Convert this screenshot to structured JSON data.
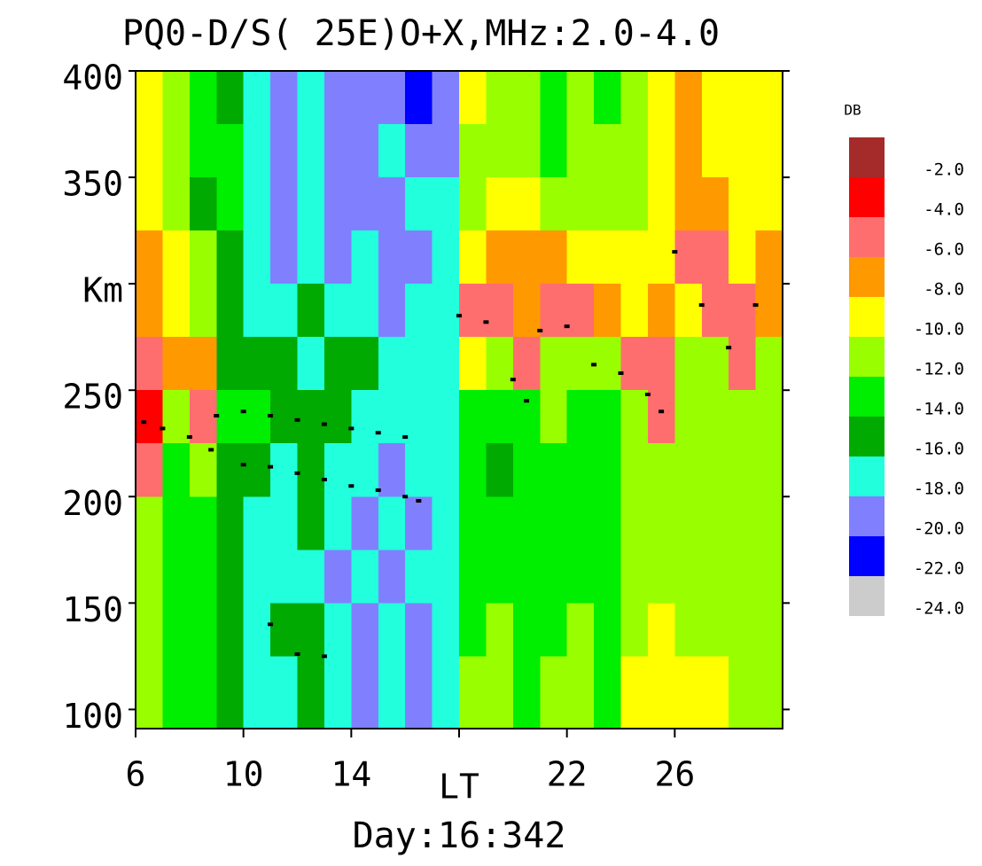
{
  "chart_data": {
    "type": "heatmap",
    "title": "PQ0-D/S( 25E)O+X,MHz:2.0-4.0",
    "caption": "Day:16:342",
    "x_edges": [
      6,
      7,
      8,
      9,
      10,
      11,
      12,
      13,
      14,
      15,
      16,
      17,
      18,
      19,
      20,
      21,
      22,
      23,
      24,
      25,
      26,
      27,
      28,
      29,
      30
    ],
    "y_edges": [
      91,
      125,
      150,
      175,
      200,
      225,
      250,
      275,
      300,
      325,
      350,
      375,
      400
    ],
    "z": [
      [
        -12,
        -14,
        -14,
        -16,
        -18,
        -18,
        -16,
        -18,
        -20,
        -18,
        -20,
        -18,
        -12,
        -12,
        -14,
        -12,
        -12,
        -14,
        -10,
        -10,
        -10,
        -10,
        -12,
        -12
      ],
      [
        -12,
        -14,
        -14,
        -16,
        -18,
        -16,
        -16,
        -18,
        -20,
        -18,
        -20,
        -18,
        -14,
        -12,
        -14,
        -14,
        -12,
        -14,
        -12,
        -10,
        -12,
        -12,
        -12,
        -12
      ],
      [
        -12,
        -14,
        -14,
        -16,
        -18,
        -18,
        -18,
        -20,
        -18,
        -20,
        -18,
        -18,
        -14,
        -14,
        -14,
        -14,
        -14,
        -14,
        -12,
        -12,
        -12,
        -12,
        -12,
        -12
      ],
      [
        -12,
        -14,
        -14,
        -16,
        -18,
        -18,
        -16,
        -18,
        -20,
        -18,
        -20,
        -18,
        -14,
        -14,
        -14,
        -14,
        -14,
        -14,
        -12,
        -12,
        -12,
        -12,
        -12,
        -12
      ],
      [
        -6,
        -14,
        -12,
        -16,
        -16,
        -18,
        -16,
        -18,
        -18,
        -20,
        -18,
        -18,
        -14,
        -16,
        -14,
        -14,
        -14,
        -14,
        -12,
        -12,
        -12,
        -12,
        -12,
        -12
      ],
      [
        -4,
        -12,
        -6,
        -14,
        -14,
        -16,
        -16,
        -16,
        -18,
        -18,
        -18,
        -18,
        -14,
        -14,
        -14,
        -12,
        -14,
        -14,
        -12,
        -6,
        -12,
        -12,
        -12,
        -12
      ],
      [
        -6,
        -8,
        -8,
        -16,
        -16,
        -16,
        -18,
        -16,
        -16,
        -18,
        -18,
        -18,
        -10,
        -12,
        -6,
        -12,
        -12,
        -12,
        -6,
        -6,
        -12,
        -12,
        -6,
        -12
      ],
      [
        -8,
        -10,
        -12,
        -16,
        -18,
        -18,
        -16,
        -18,
        -18,
        -20,
        -18,
        -18,
        -6,
        -6,
        -8,
        -6,
        -6,
        -8,
        -10,
        -8,
        -10,
        -6,
        -6,
        -8
      ],
      [
        -8,
        -10,
        -12,
        -16,
        -18,
        -20,
        -18,
        -20,
        -18,
        -20,
        -20,
        -18,
        -10,
        -8,
        -8,
        -8,
        -10,
        -10,
        -10,
        -10,
        -6,
        -6,
        -10,
        -8
      ],
      [
        -10,
        -12,
        -16,
        -14,
        -18,
        -20,
        -18,
        -20,
        -20,
        -20,
        -18,
        -18,
        -12,
        -10,
        -10,
        -12,
        -12,
        -12,
        -12,
        -10,
        -8,
        -8,
        -10,
        -10
      ],
      [
        -10,
        -12,
        -14,
        -14,
        -18,
        -20,
        -18,
        -20,
        -20,
        -18,
        -20,
        -20,
        -12,
        -12,
        -12,
        -14,
        -12,
        -12,
        -12,
        -10,
        -8,
        -10,
        -10,
        -10
      ],
      [
        -10,
        -12,
        -14,
        -16,
        -18,
        -20,
        -18,
        -20,
        -20,
        -20,
        -22,
        -20,
        -10,
        -12,
        -12,
        -14,
        -12,
        -14,
        -12,
        -10,
        -8,
        -10,
        -10,
        -10
      ]
    ],
    "trace": {
      "color": "#000000",
      "x": [
        6.3,
        7,
        8,
        8.8,
        10,
        11,
        12,
        13,
        14,
        15,
        16,
        16.5,
        9,
        10,
        11,
        12,
        13,
        14,
        15,
        16,
        18,
        19,
        20,
        20.5,
        21,
        22,
        23,
        24,
        25,
        25.5,
        26,
        27,
        28,
        29,
        11,
        12,
        13
      ],
      "y": [
        235,
        232,
        228,
        222,
        215,
        214,
        211,
        208,
        205,
        203,
        200,
        198,
        238,
        240,
        238,
        236,
        234,
        232,
        230,
        228,
        285,
        282,
        255,
        245,
        278,
        280,
        262,
        258,
        248,
        240,
        315,
        290,
        270,
        290,
        140,
        126,
        125
      ]
    },
    "xlim": [
      6,
      30
    ],
    "ylim": [
      91,
      400
    ],
    "xticks": [
      6,
      10,
      14,
      {
        "value": 18,
        "label": "LT"
      },
      22,
      26
    ],
    "yticks": [
      100,
      150,
      200,
      250,
      {
        "value": 300,
        "label": "Km"
      },
      350,
      400
    ],
    "colorscale": {
      "title": "DB",
      "levels": [
        -2,
        -4,
        -6,
        -8,
        -10,
        -12,
        -14,
        -16,
        -18,
        -20,
        -22,
        -24
      ],
      "labels": [
        "-2.0",
        "-4.0",
        "-6.0",
        "-8.0",
        "-10.0",
        "-12.0",
        "-14.0",
        "-16.0",
        "-18.0",
        "-20.0",
        "-22.0",
        "-24.0"
      ],
      "colors": [
        "#a52a2a",
        "#ff0000",
        "#ff6e6e",
        "#ff9900",
        "#ffff00",
        "#99ff00",
        "#00ee00",
        "#00aa00",
        "#22ffdd",
        "#8080ff",
        "#0000ff",
        "#cccccc"
      ]
    }
  }
}
